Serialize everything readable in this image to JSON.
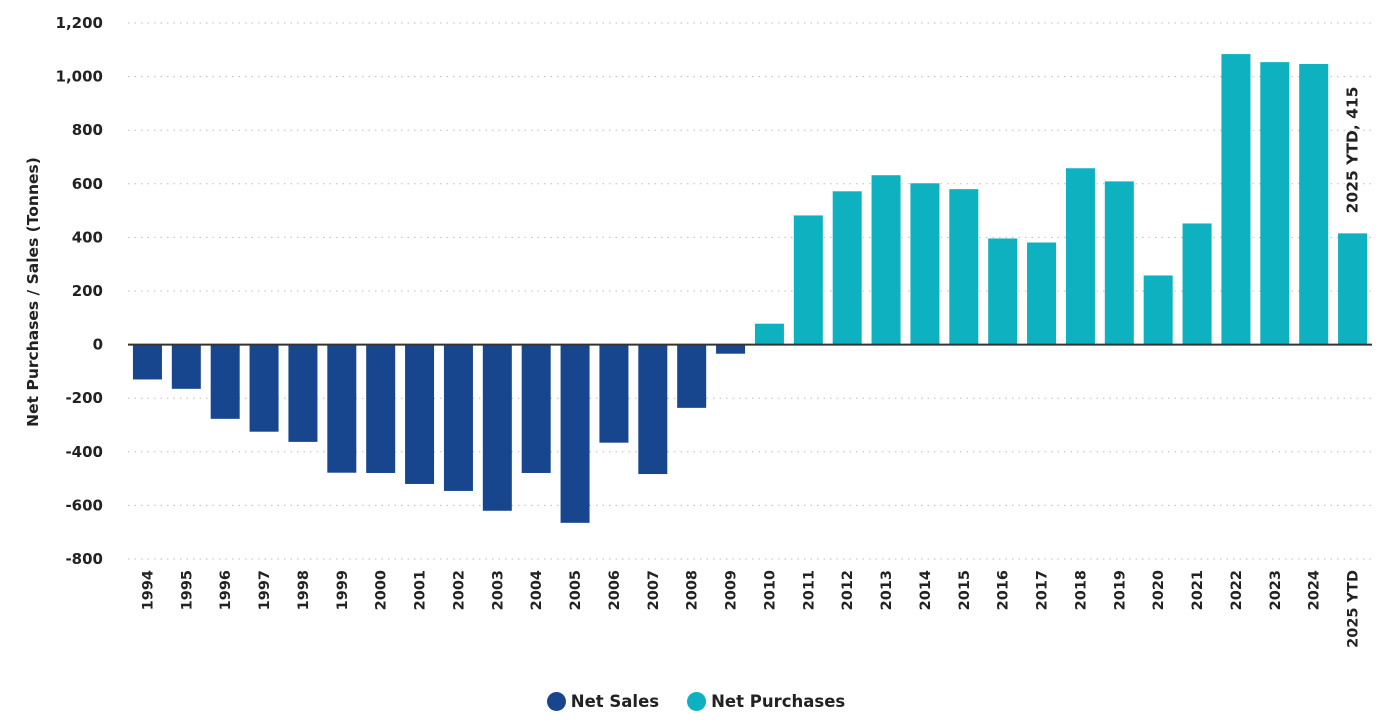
{
  "chart_data": {
    "type": "bar",
    "title": "",
    "xlabel": "",
    "ylabel": "Net Purchases / Sales (Tonnes)",
    "ylim": [
      -800,
      1200
    ],
    "yticks": [
      1200,
      1000,
      800,
      600,
      400,
      200,
      0,
      -200,
      -400,
      -600,
      -800
    ],
    "ytick_labels": [
      "1,200",
      "1,000",
      "800",
      "600",
      "400",
      "200",
      "0",
      "-200",
      "-400",
      "-600",
      "-800"
    ],
    "grid": true,
    "categories": [
      "1994",
      "1995",
      "1996",
      "1997",
      "1998",
      "1999",
      "2000",
      "2001",
      "2002",
      "2003",
      "2004",
      "2005",
      "2006",
      "2007",
      "2008",
      "2009",
      "2010",
      "2011",
      "2012",
      "2013",
      "2014",
      "2015",
      "2016",
      "2017",
      "2018",
      "2019",
      "2020",
      "2021",
      "2022",
      "2023",
      "2024",
      "2025 YTD"
    ],
    "values": [
      -130,
      -165,
      -277,
      -325,
      -363,
      -478,
      -479,
      -520,
      -546,
      -620,
      -479,
      -665,
      -366,
      -483,
      -236,
      -34,
      78,
      482,
      572,
      632,
      602,
      580,
      396,
      381,
      658,
      609,
      258,
      452,
      1084,
      1054,
      1047,
      415
    ],
    "series": [
      {
        "name": "Net Sales",
        "color": "#17468e",
        "rule": "negative"
      },
      {
        "name": "Net Purchases",
        "color": "#0db1bf",
        "rule": "positive"
      }
    ],
    "annotations": [
      {
        "category": "2025 YTD",
        "text": "2025 YTD, 415",
        "color": "#0db1bf"
      }
    ],
    "legend": {
      "position": "bottom-center",
      "entries": [
        "Net Sales",
        "Net Purchases"
      ]
    }
  }
}
